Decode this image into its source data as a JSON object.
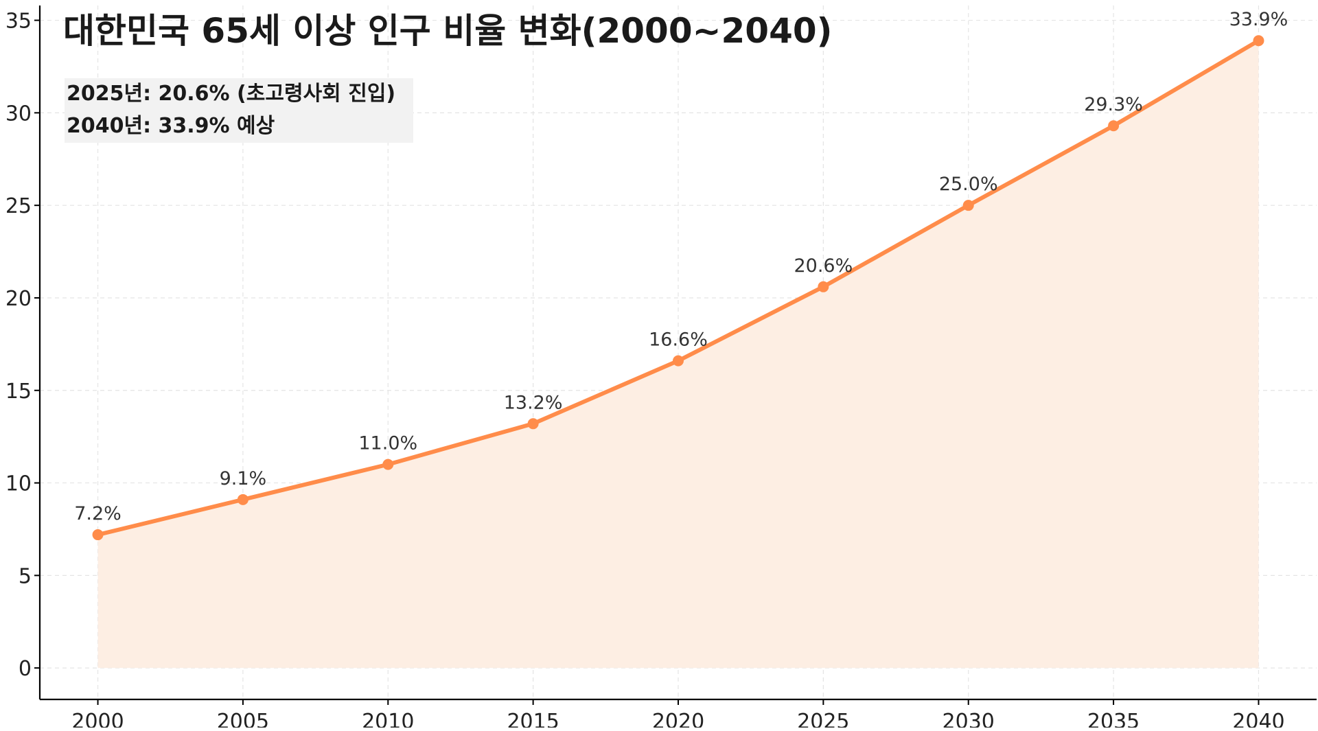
{
  "chart_data": {
    "type": "area",
    "title": "대한민국 65세 이상 인구 비율 변화(2000~2040)",
    "xlabel": "",
    "ylabel": "",
    "x": [
      2000,
      2005,
      2010,
      2015,
      2020,
      2025,
      2030,
      2035,
      2040
    ],
    "values": [
      7.2,
      9.1,
      11.0,
      13.2,
      16.6,
      20.6,
      25.0,
      29.3,
      33.9
    ],
    "data_labels": [
      "7.2%",
      "9.1%",
      "11.0%",
      "13.2%",
      "16.6%",
      "20.6%",
      "25.0%",
      "29.3%",
      "33.9%"
    ],
    "x_ticks": [
      "2000",
      "2005",
      "2010",
      "2015",
      "2020",
      "2025",
      "2030",
      "2035",
      "2040"
    ],
    "y_ticks": [
      0,
      5,
      10,
      15,
      20,
      25,
      30,
      35
    ],
    "xlim": [
      1998,
      2042
    ],
    "ylim": [
      -1.7,
      35.8
    ],
    "grid": true,
    "annotations": [
      "2025년: 20.6% (초고령사회 진입)",
      "2040년: 33.9% 예상"
    ],
    "colors": {
      "line": "#ff8c4a",
      "fill": "#fdeee3",
      "grid": "#e4e4e4",
      "annotation_box": "#f2f2f2"
    }
  }
}
